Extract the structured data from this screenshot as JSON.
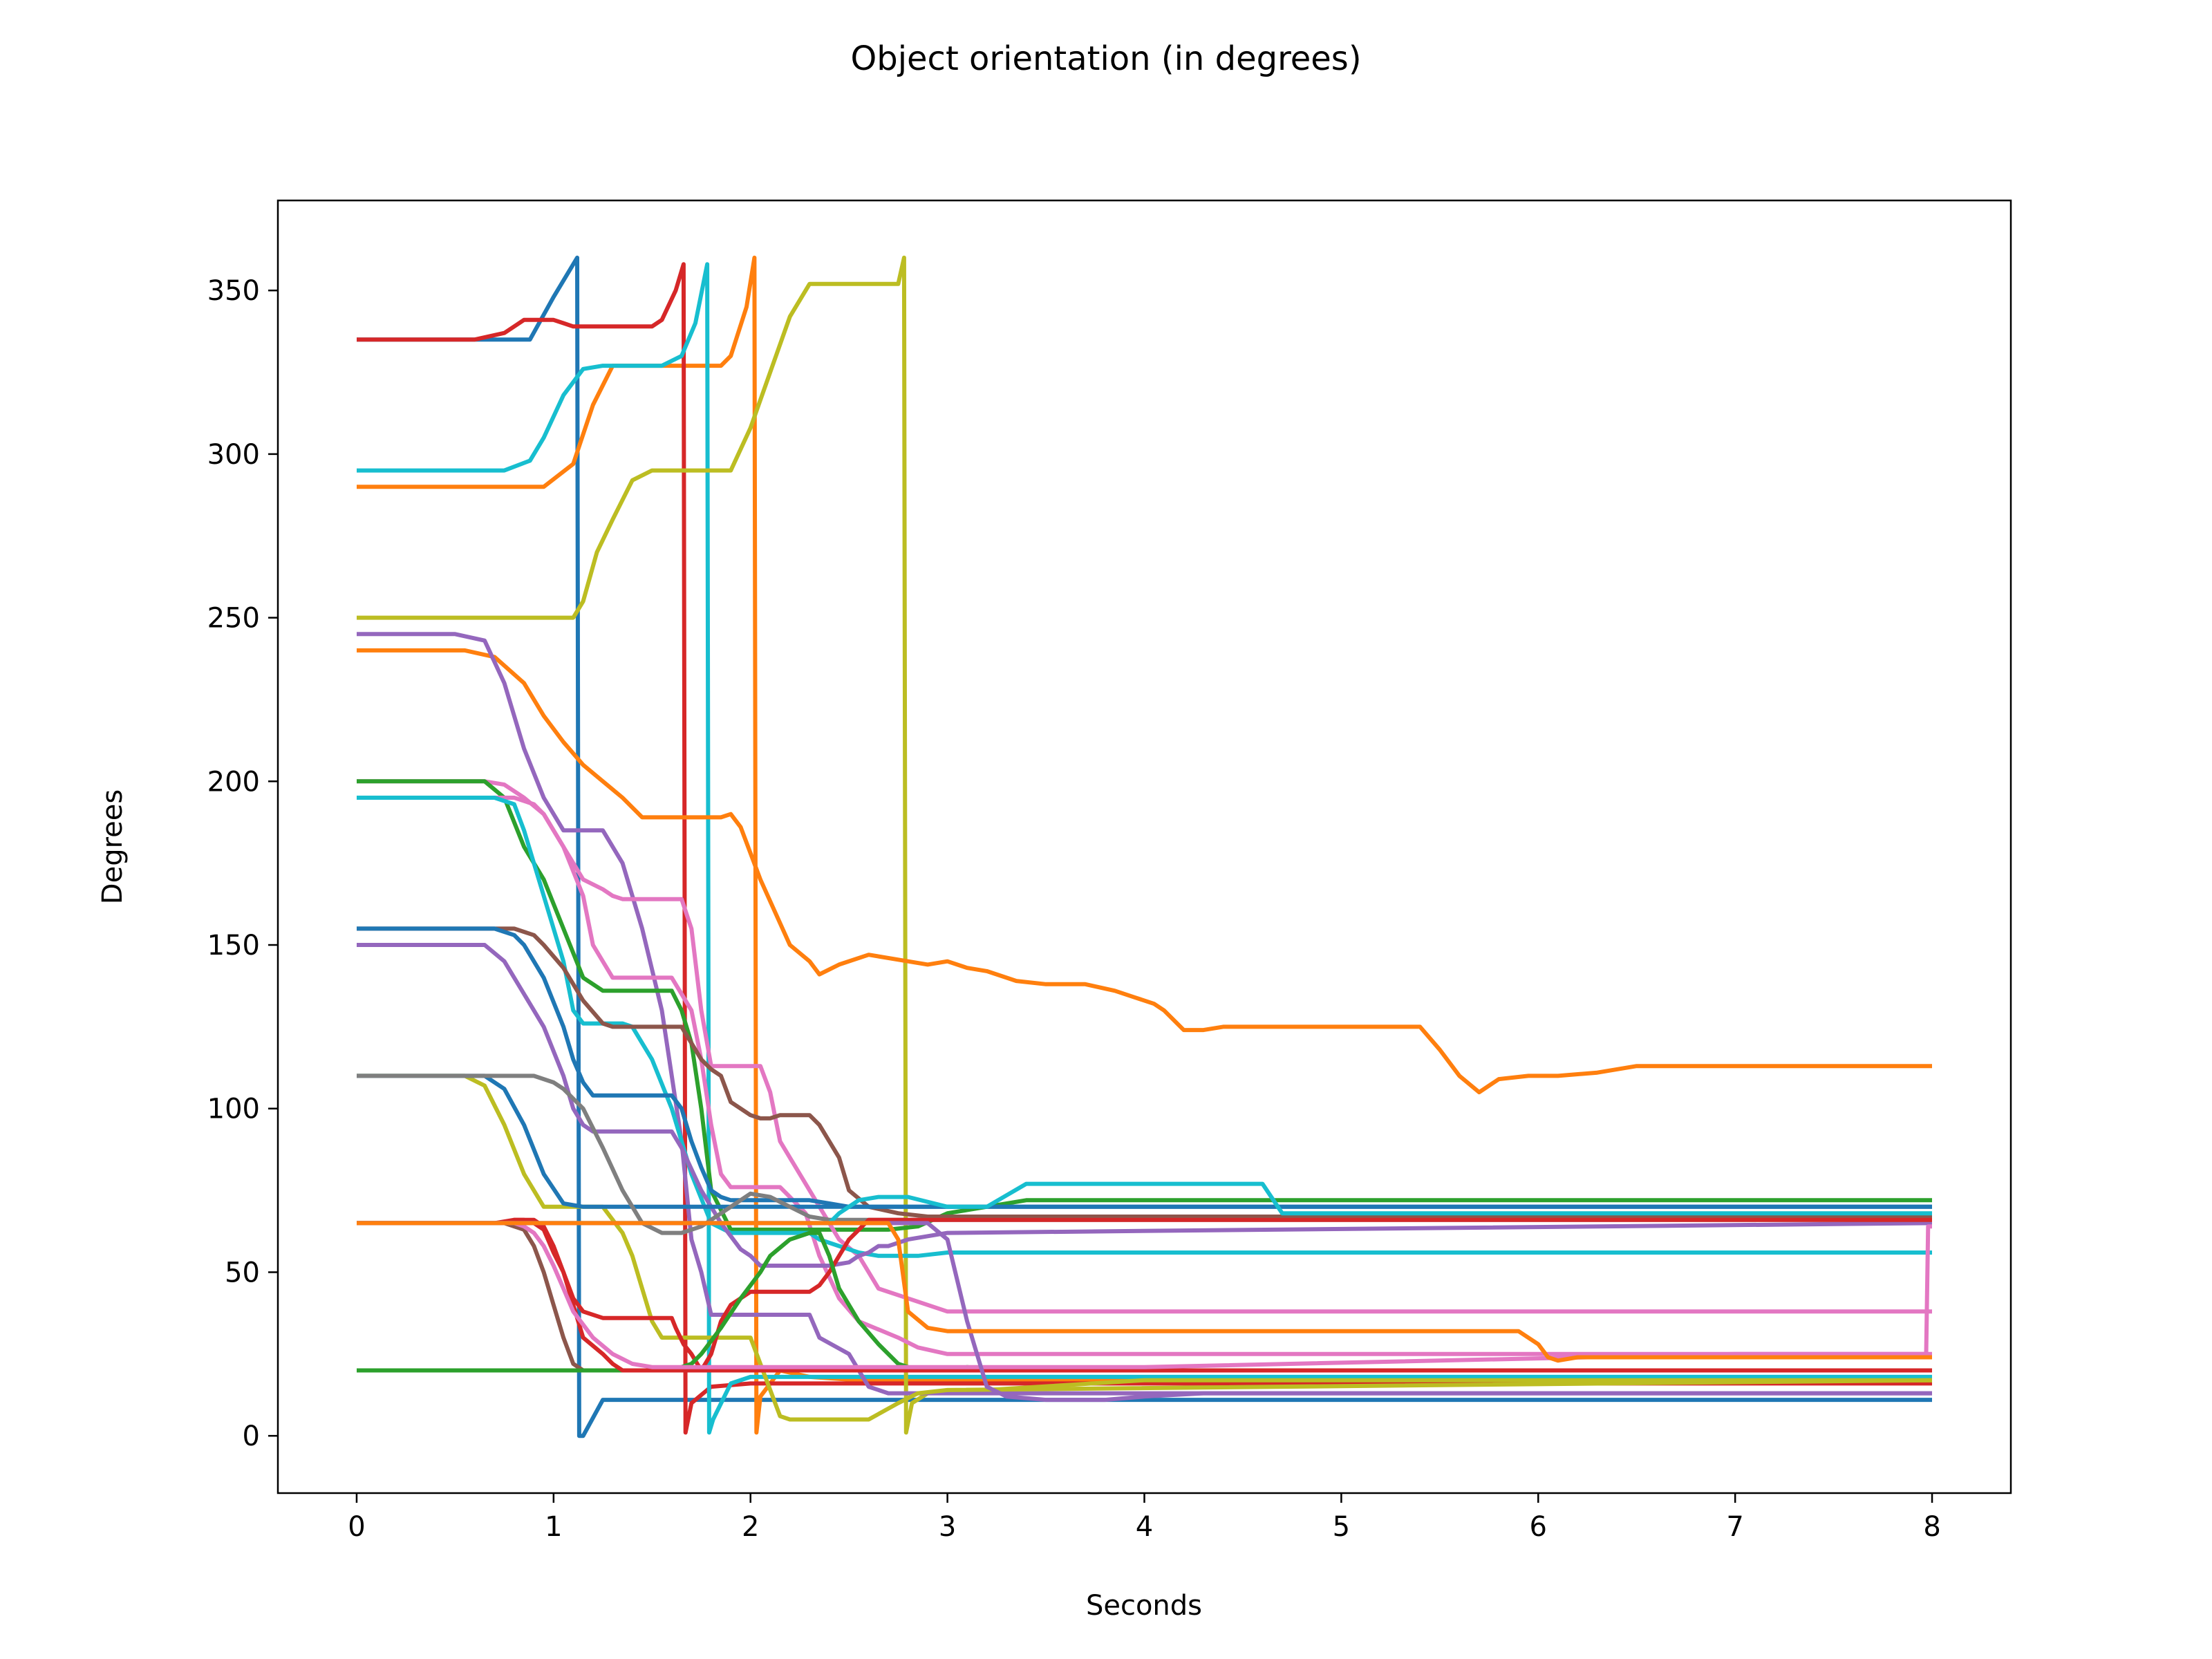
{
  "chart_data": {
    "type": "line",
    "title": "Object orientation (in degrees)",
    "xlabel": "Seconds",
    "ylabel": "Degrees",
    "xlim": [
      -0.4,
      8.4
    ],
    "ylim": [
      -17.5,
      377.5
    ],
    "xticks": [
      0,
      1,
      2,
      3,
      4,
      5,
      6,
      7,
      8
    ],
    "yticks": [
      0,
      50,
      100,
      150,
      200,
      250,
      300,
      350
    ],
    "grid": false,
    "legend": "none",
    "series": [
      {
        "color": "#1f77b4",
        "x": [
          0,
          0.88,
          1.0,
          1.12,
          1.13,
          1.15,
          1.25,
          1.6,
          1.62,
          1.64,
          8.0
        ],
        "y": [
          335,
          335,
          348,
          360,
          0,
          0,
          11,
          11,
          11,
          11,
          11
        ]
      },
      {
        "color": "#ff7f0e",
        "x": [
          0,
          0.95,
          1.1,
          1.2,
          1.3,
          1.85,
          1.9,
          1.98,
          2.02,
          2.03,
          2.05,
          2.15,
          2.3,
          2.55,
          2.75,
          2.85,
          3.0,
          8.0
        ],
        "y": [
          290,
          290,
          297,
          315,
          327,
          327,
          330,
          345,
          360,
          1,
          12,
          20,
          18,
          17,
          17,
          17,
          17,
          17
        ]
      },
      {
        "color": "#d62728",
        "x": [
          0,
          0.6,
          0.75,
          0.8,
          0.85,
          1.0,
          1.05,
          1.1,
          1.5,
          1.55,
          1.62,
          1.66,
          1.67,
          1.7,
          1.8,
          2.0,
          2.2,
          3.0,
          4.0,
          8.0
        ],
        "y": [
          335,
          335,
          337,
          339,
          341,
          341,
          340,
          339,
          339,
          341,
          350,
          358,
          1,
          10,
          15,
          16,
          16,
          16,
          16,
          16
        ]
      },
      {
        "color": "#17becf",
        "x": [
          0,
          0.75,
          0.88,
          0.95,
          1.05,
          1.15,
          1.25,
          1.55,
          1.65,
          1.72,
          1.78,
          1.79,
          1.81,
          1.9,
          2.0,
          8.0
        ],
        "y": [
          295,
          295,
          298,
          305,
          318,
          326,
          327,
          327,
          330,
          340,
          358,
          1,
          5,
          16,
          18,
          18
        ]
      },
      {
        "color": "#bcbd22",
        "x": [
          0,
          1.1,
          1.15,
          1.22,
          1.3,
          1.4,
          1.5,
          1.9,
          2.0,
          2.1,
          2.2,
          2.3,
          2.75,
          2.78,
          2.79,
          2.82,
          2.9,
          3.2,
          4.0,
          8.0
        ],
        "y": [
          250,
          250,
          255,
          270,
          280,
          292,
          295,
          295,
          308,
          325,
          342,
          352,
          352,
          360,
          1,
          10,
          13,
          14,
          17,
          17
        ]
      },
      {
        "color": "#ff7f0e",
        "x": [
          0,
          0.55,
          0.7,
          0.85,
          0.95,
          1.05,
          1.15,
          1.25,
          1.35,
          1.45,
          1.55,
          1.85,
          1.9,
          1.95,
          2.05,
          2.2,
          2.3,
          2.35,
          2.45,
          2.6,
          2.8,
          2.9,
          3.0,
          3.1,
          3.2,
          3.35,
          3.5,
          3.7,
          3.85,
          3.95,
          4.05,
          4.1,
          4.15,
          4.2,
          4.3,
          4.4,
          5.0,
          5.4,
          5.5,
          5.6,
          5.7,
          5.8,
          5.95,
          6.1,
          6.3,
          6.4,
          6.5,
          7.0,
          8.0
        ],
        "y": [
          240,
          240,
          238,
          230,
          220,
          212,
          205,
          200,
          195,
          189,
          189,
          189,
          190,
          186,
          170,
          150,
          145,
          141,
          144,
          147,
          145,
          144,
          145,
          143,
          142,
          139,
          138,
          138,
          136,
          134,
          132,
          130,
          127,
          124,
          124,
          125,
          125,
          125,
          118,
          110,
          105,
          109,
          110,
          110,
          111,
          112,
          113,
          113,
          113
        ]
      },
      {
        "color": "#9467bd",
        "x": [
          0,
          0.5,
          0.65,
          0.75,
          0.85,
          0.95,
          1.05,
          1.25,
          1.35,
          1.45,
          1.55,
          1.6,
          1.65,
          1.7,
          1.75,
          1.8,
          2.3,
          2.35,
          2.5,
          2.55,
          2.6,
          2.7,
          2.8,
          3.0,
          8.0
        ],
        "y": [
          245,
          245,
          243,
          230,
          210,
          195,
          185,
          185,
          175,
          155,
          130,
          110,
          90,
          60,
          50,
          37,
          37,
          30,
          25,
          20,
          15,
          13,
          13,
          13,
          13
        ]
      },
      {
        "color": "#e377c2",
        "x": [
          0,
          0.65,
          0.75,
          0.85,
          0.95,
          1.05,
          1.15,
          1.2,
          1.3,
          1.6,
          1.7,
          1.75,
          1.8,
          1.85,
          1.9,
          2.15,
          2.2,
          2.28,
          2.35,
          2.45,
          2.55,
          2.75,
          2.85,
          3.0,
          8.0
        ],
        "y": [
          200,
          200,
          199,
          195,
          190,
          180,
          165,
          150,
          140,
          140,
          130,
          115,
          95,
          80,
          76,
          76,
          73,
          68,
          55,
          42,
          35,
          30,
          27,
          25,
          25
        ]
      },
      {
        "color": "#2ca02c",
        "x": [
          0,
          0.65,
          0.75,
          0.85,
          0.95,
          1.05,
          1.15,
          1.25,
          1.6,
          1.65,
          1.7,
          1.75,
          1.8,
          1.9,
          2.0,
          2.3,
          2.5,
          2.7,
          2.85,
          3.0,
          3.4,
          4.0,
          8.0
        ],
        "y": [
          200,
          200,
          195,
          180,
          170,
          155,
          140,
          136,
          136,
          130,
          120,
          100,
          75,
          63,
          63,
          63,
          63,
          63,
          64,
          68,
          72,
          72,
          72
        ]
      },
      {
        "color": "#e377c2",
        "x": [
          0,
          0.65,
          0.8,
          0.9,
          0.95,
          1.05,
          1.15,
          1.25,
          1.3,
          1.35,
          1.65,
          1.7,
          1.75,
          1.8,
          1.85,
          2.05,
          2.1,
          2.15,
          2.3,
          2.4,
          2.45,
          2.55,
          2.6,
          2.65,
          2.8,
          2.9,
          3.0,
          8.0
        ],
        "y": [
          195,
          195,
          195,
          193,
          190,
          180,
          170,
          167,
          165,
          164,
          164,
          155,
          130,
          113,
          113,
          113,
          105,
          90,
          75,
          65,
          60,
          55,
          50,
          45,
          42,
          40,
          38,
          38
        ]
      },
      {
        "color": "#17becf",
        "x": [
          0,
          0.7,
          0.8,
          0.85,
          0.95,
          1.05,
          1.1,
          1.15,
          1.35,
          1.4,
          1.45,
          1.5,
          1.6,
          1.7,
          1.8,
          1.9,
          2.0,
          2.15,
          2.3,
          2.35,
          2.45,
          2.55,
          2.65,
          2.75,
          2.85,
          3.0,
          8.0
        ],
        "y": [
          195,
          195,
          193,
          185,
          165,
          145,
          130,
          126,
          126,
          125,
          120,
          115,
          100,
          80,
          65,
          62,
          62,
          62,
          62,
          60,
          58,
          56,
          55,
          55,
          55,
          56,
          56
        ]
      },
      {
        "color": "#8c564b",
        "x": [
          0,
          0.8,
          0.9,
          0.95,
          1.05,
          1.15,
          1.25,
          1.3,
          1.65,
          1.7,
          1.75,
          1.8,
          1.85,
          1.9,
          1.95,
          2.0,
          2.05,
          2.1,
          2.15,
          2.3,
          2.35,
          2.45,
          2.5,
          2.6,
          2.75,
          2.9,
          3.0,
          8.0
        ],
        "y": [
          155,
          155,
          153,
          150,
          143,
          133,
          126,
          125,
          125,
          120,
          115,
          112,
          110,
          102,
          100,
          98,
          97,
          97,
          98,
          98,
          95,
          85,
          75,
          70,
          68,
          67,
          67,
          67
        ]
      },
      {
        "color": "#1f77b4",
        "x": [
          0,
          0.7,
          0.8,
          0.85,
          0.95,
          1.05,
          1.1,
          1.15,
          1.2,
          1.6,
          1.65,
          1.7,
          1.75,
          1.8,
          1.85,
          1.9,
          2.0,
          2.15,
          2.2,
          2.3,
          2.4,
          2.5,
          2.55,
          2.6,
          2.8,
          3.0,
          4.0,
          8.0
        ],
        "y": [
          155,
          155,
          153,
          150,
          140,
          125,
          115,
          108,
          104,
          104,
          100,
          90,
          82,
          75,
          73,
          72,
          72,
          72,
          72,
          72,
          71,
          70,
          70,
          70,
          70,
          70,
          70,
          70
        ]
      },
      {
        "color": "#9467bd",
        "x": [
          0,
          0.65,
          0.75,
          0.85,
          0.95,
          1.05,
          1.1,
          1.15,
          1.2,
          1.3,
          1.6,
          1.65,
          1.75,
          1.85,
          1.95,
          2.0,
          2.05,
          2.1,
          2.3,
          2.4,
          2.5,
          2.55,
          2.6,
          2.65,
          2.7,
          2.8,
          3.0,
          8.0
        ],
        "y": [
          150,
          150,
          145,
          135,
          125,
          110,
          100,
          95,
          93,
          93,
          93,
          88,
          75,
          65,
          57,
          55,
          52,
          52,
          52,
          52,
          53,
          55,
          56,
          58,
          58,
          60,
          62,
          65
        ]
      },
      {
        "color": "#bcbd22",
        "x": [
          0,
          0.55,
          0.65,
          0.75,
          0.85,
          0.95,
          1.05,
          1.15,
          1.25,
          1.35,
          1.4,
          1.45,
          1.5,
          1.55,
          1.6,
          1.7,
          1.8,
          1.9,
          2.0,
          2.15,
          2.2,
          2.3,
          2.6,
          2.75,
          2.85,
          3.0,
          8.0
        ],
        "y": [
          110,
          110,
          107,
          95,
          80,
          70,
          70,
          70,
          70,
          62,
          55,
          45,
          35,
          30,
          30,
          30,
          30,
          30,
          30,
          6,
          5,
          5,
          5,
          10,
          13,
          14,
          17
        ]
      },
      {
        "color": "#1f77b4",
        "x": [
          0,
          0.65,
          0.75,
          0.85,
          0.95,
          1.05,
          1.15,
          1.25,
          3.0,
          8.0
        ],
        "y": [
          110,
          110,
          106,
          95,
          80,
          71,
          70,
          70,
          70,
          70
        ]
      },
      {
        "color": "#7f7f7f",
        "x": [
          0,
          0.8,
          0.9,
          1.0,
          1.05,
          1.15,
          1.25,
          1.35,
          1.45,
          1.55,
          1.65,
          1.75,
          1.85,
          2.0,
          2.1,
          2.2,
          2.3,
          2.4,
          2.5,
          2.6,
          2.8,
          3.0,
          8.0
        ],
        "y": [
          110,
          110,
          110,
          108,
          106,
          100,
          88,
          75,
          65,
          62,
          62,
          64,
          68,
          74,
          73,
          70,
          67,
          66,
          66,
          66,
          66,
          66,
          66
        ]
      },
      {
        "color": "#d62728",
        "x": [
          0,
          0.75,
          0.8,
          0.85,
          0.9,
          0.95,
          1.0,
          1.05,
          1.1,
          1.15,
          1.25,
          1.6,
          1.62,
          1.66,
          1.7,
          1.75,
          1.8,
          1.85,
          1.9,
          2.0,
          2.3,
          2.35,
          2.4,
          2.45,
          2.5,
          2.6,
          2.8,
          3.0,
          8.0
        ],
        "y": [
          65,
          65,
          66,
          66,
          65,
          63,
          56,
          50,
          42,
          38,
          36,
          36,
          33,
          28,
          25,
          20,
          25,
          35,
          40,
          44,
          44,
          46,
          50,
          55,
          60,
          66,
          66,
          66,
          66
        ]
      },
      {
        "color": "#8c564b",
        "x": [
          0,
          0.75,
          0.85,
          0.9,
          0.95,
          1.0,
          1.05,
          1.1,
          1.15,
          1.2,
          2.0,
          2.5,
          3.0,
          8.0
        ],
        "y": [
          65,
          65,
          63,
          58,
          50,
          40,
          30,
          22,
          20,
          20,
          20,
          20,
          20,
          20
        ]
      },
      {
        "color": "#2ca02c",
        "x": [
          0,
          1.6,
          1.65,
          1.7,
          1.75,
          1.85,
          1.95,
          2.05,
          2.1,
          2.2,
          2.3,
          2.35,
          2.4,
          2.45,
          2.55,
          2.65,
          2.75,
          2.85,
          3.0,
          3.1,
          3.3,
          4.0,
          8.0
        ],
        "y": [
          20,
          20,
          21,
          22,
          25,
          33,
          42,
          50,
          55,
          60,
          62,
          62,
          55,
          45,
          35,
          28,
          22,
          20,
          20,
          21,
          20,
          20,
          20
        ]
      },
      {
        "color": "#d62728",
        "x": [
          0,
          0.7,
          0.8,
          0.9,
          0.95,
          1.0,
          1.05,
          1.1,
          1.15,
          1.25,
          1.3,
          1.35,
          1.4,
          1.45,
          1.5,
          1.6,
          1.7,
          1.8,
          1.9,
          2.0,
          2.5,
          3.0,
          8.0
        ],
        "y": [
          65,
          65,
          66,
          66,
          64,
          58,
          50,
          40,
          30,
          25,
          22,
          20,
          20,
          20,
          20,
          20,
          20,
          20,
          20,
          20,
          20,
          20,
          20
        ]
      },
      {
        "color": "#e377c2",
        "x": [
          0,
          0.7,
          0.8,
          0.85,
          0.9,
          0.95,
          1.0,
          1.05,
          1.1,
          1.2,
          1.3,
          1.4,
          1.5,
          1.6,
          1.7,
          1.8,
          2.0,
          2.5,
          3.0,
          4.0,
          7.0,
          7.97,
          7.98,
          8.0
        ],
        "y": [
          65,
          65,
          65,
          64,
          62,
          58,
          52,
          45,
          38,
          30,
          25,
          22,
          21,
          21,
          21,
          21,
          21,
          21,
          21,
          21,
          25,
          25,
          64,
          64
        ]
      },
      {
        "color": "#17becf",
        "x": [
          0,
          2.4,
          2.45,
          2.55,
          2.65,
          2.75,
          2.8,
          3.0,
          3.2,
          3.4,
          4.0,
          4.6,
          4.7,
          8.0
        ],
        "y": [
          65,
          65,
          68,
          72,
          73,
          73,
          73,
          70,
          70,
          77,
          77,
          77,
          68,
          68
        ]
      },
      {
        "color": "#9467bd",
        "x": [
          0,
          2.9,
          3.0,
          3.1,
          3.2,
          3.3,
          3.5,
          3.8,
          4.0,
          4.3,
          4.6,
          8.0
        ],
        "y": [
          65,
          65,
          60,
          35,
          15,
          12,
          11,
          11,
          12,
          13,
          13,
          13
        ]
      },
      {
        "color": "#ff7f0e",
        "x": [
          0,
          2.7,
          2.75,
          2.8,
          2.9,
          3.0,
          3.2,
          3.4,
          3.6,
          4.0,
          5.0,
          5.9,
          6.0,
          6.05,
          6.1,
          6.2,
          7.0,
          8.0
        ],
        "y": [
          65,
          65,
          60,
          38,
          33,
          32,
          32,
          32,
          32,
          32,
          32,
          32,
          28,
          24,
          23,
          24,
          24,
          24
        ]
      }
    ]
  }
}
